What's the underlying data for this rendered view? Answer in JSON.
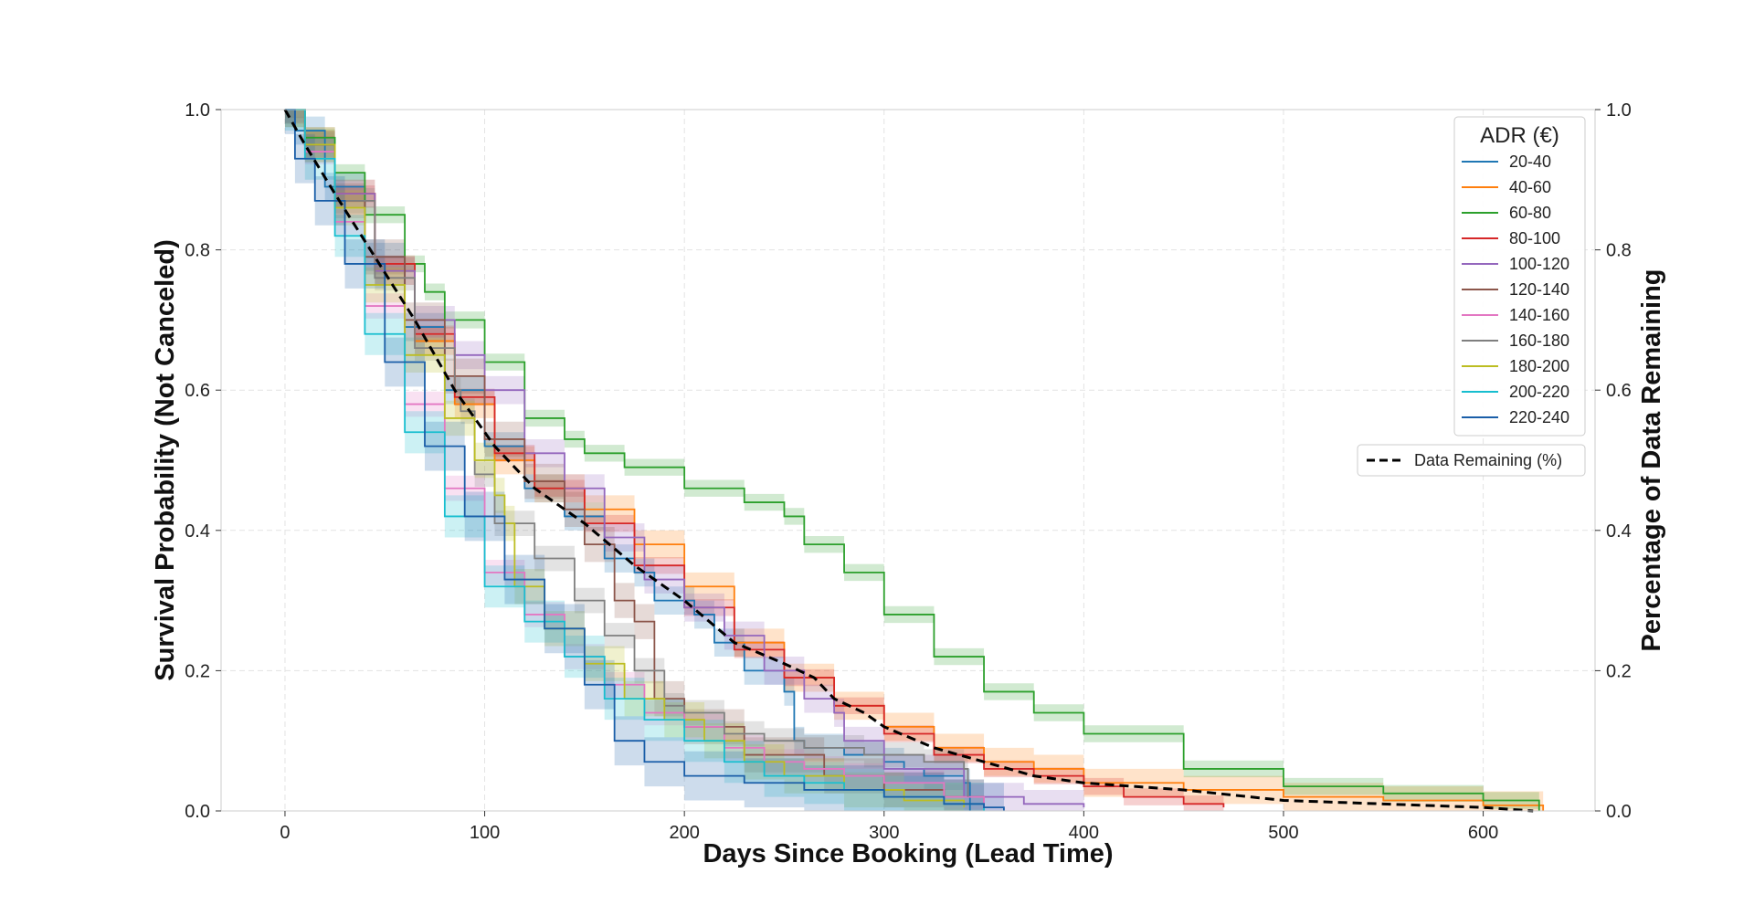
{
  "chart_data": {
    "type": "line",
    "subtype": "kaplan-meier survival curves with confidence bands",
    "xlabel": "Days Since Booking (Lead Time)",
    "ylabel": "Survival Probability (Not Canceled)",
    "y2label": "Percentage of Data Remaining",
    "xlim": [
      -32,
      656
    ],
    "ylim": [
      0,
      1
    ],
    "y2lim": [
      0,
      1
    ],
    "x_ticks": [
      0,
      100,
      200,
      300,
      400,
      500,
      600
    ],
    "y_ticks": [
      0.0,
      0.2,
      0.4,
      0.6,
      0.8,
      1.0
    ],
    "y_tick_labels": [
      "0.0",
      "0.2",
      "0.4",
      "0.6",
      "0.8",
      "1.0"
    ],
    "y2_ticks": [
      0.0,
      0.2,
      0.4,
      0.6,
      0.8,
      1.0
    ],
    "y2_tick_labels": [
      "0.0",
      "0.2",
      "0.4",
      "0.6",
      "0.8",
      "1.0"
    ],
    "grid": true,
    "legend": {
      "title": "ADR (€)",
      "placement": "top-right"
    },
    "legend2": {
      "placement": "right"
    },
    "series": [
      {
        "name": "20-40",
        "color": "#1f77b4",
        "ci": 0.02,
        "x": [
          0,
          5,
          20,
          40,
          60,
          80,
          100,
          120,
          140,
          160,
          175,
          185,
          205,
          215,
          230,
          250,
          255,
          260,
          280,
          300,
          310,
          320,
          340,
          343
        ],
        "y": [
          1.0,
          0.97,
          0.89,
          0.79,
          0.69,
          0.6,
          0.52,
          0.46,
          0.42,
          0.36,
          0.34,
          0.3,
          0.28,
          0.24,
          0.2,
          0.17,
          0.1,
          0.09,
          0.08,
          0.07,
          0.06,
          0.05,
          0.04,
          0.0
        ]
      },
      {
        "name": "40-60",
        "color": "#ff7f0e",
        "ci": 0.02,
        "x": [
          0,
          10,
          25,
          45,
          65,
          85,
          105,
          125,
          150,
          175,
          200,
          225,
          250,
          275,
          300,
          325,
          350,
          375,
          400,
          450,
          500,
          550,
          600,
          630
        ],
        "y": [
          1.0,
          0.95,
          0.88,
          0.77,
          0.67,
          0.58,
          0.5,
          0.46,
          0.43,
          0.38,
          0.32,
          0.24,
          0.19,
          0.15,
          0.12,
          0.09,
          0.07,
          0.06,
          0.04,
          0.03,
          0.02,
          0.015,
          0.008,
          0.0
        ]
      },
      {
        "name": "60-80",
        "color": "#2ca02c",
        "ci": 0.012,
        "x": [
          0,
          10,
          25,
          40,
          60,
          70,
          80,
          100,
          120,
          140,
          150,
          170,
          200,
          230,
          250,
          260,
          280,
          300,
          325,
          350,
          375,
          400,
          450,
          500,
          550,
          600,
          628
        ],
        "y": [
          1.0,
          0.96,
          0.91,
          0.85,
          0.78,
          0.74,
          0.7,
          0.64,
          0.56,
          0.53,
          0.51,
          0.49,
          0.46,
          0.44,
          0.42,
          0.38,
          0.34,
          0.28,
          0.22,
          0.17,
          0.14,
          0.11,
          0.06,
          0.035,
          0.025,
          0.015,
          0.0
        ]
      },
      {
        "name": "80-100",
        "color": "#d62728",
        "ci": 0.012,
        "x": [
          0,
          10,
          25,
          45,
          65,
          85,
          105,
          125,
          150,
          175,
          200,
          225,
          250,
          275,
          300,
          325,
          350,
          375,
          400,
          420,
          450,
          470
        ],
        "y": [
          1.0,
          0.95,
          0.88,
          0.78,
          0.68,
          0.59,
          0.51,
          0.46,
          0.41,
          0.35,
          0.29,
          0.23,
          0.19,
          0.15,
          0.11,
          0.08,
          0.06,
          0.05,
          0.035,
          0.02,
          0.01,
          0.005
        ]
      },
      {
        "name": "100-120",
        "color": "#9467bd",
        "ci": 0.02,
        "x": [
          0,
          10,
          25,
          45,
          65,
          85,
          100,
          120,
          140,
          160,
          180,
          200,
          220,
          240,
          260,
          275,
          280,
          300,
          340,
          370,
          400
        ],
        "y": [
          1.0,
          0.95,
          0.88,
          0.77,
          0.7,
          0.65,
          0.6,
          0.51,
          0.46,
          0.39,
          0.33,
          0.29,
          0.25,
          0.2,
          0.16,
          0.14,
          0.1,
          0.06,
          0.02,
          0.01,
          0.005
        ]
      },
      {
        "name": "120-140",
        "color": "#8c564b",
        "ci": 0.025,
        "x": [
          0,
          10,
          25,
          40,
          60,
          80,
          100,
          120,
          140,
          150,
          165,
          175,
          185,
          200,
          230,
          270,
          300,
          330,
          350
        ],
        "y": [
          1.0,
          0.95,
          0.87,
          0.79,
          0.7,
          0.62,
          0.53,
          0.47,
          0.43,
          0.38,
          0.3,
          0.27,
          0.16,
          0.12,
          0.08,
          0.05,
          0.03,
          0.02,
          0.005
        ]
      },
      {
        "name": "140-160",
        "color": "#e377c2",
        "ci": 0.018,
        "x": [
          0,
          10,
          25,
          40,
          60,
          80,
          100,
          120,
          140,
          160,
          180,
          200,
          220,
          240,
          260,
          280,
          300,
          330,
          350
        ],
        "y": [
          1.0,
          0.94,
          0.84,
          0.72,
          0.58,
          0.46,
          0.34,
          0.28,
          0.22,
          0.18,
          0.14,
          0.12,
          0.09,
          0.07,
          0.06,
          0.05,
          0.04,
          0.02,
          0.005
        ]
      },
      {
        "name": "160-180",
        "color": "#7f7f7f",
        "ci": 0.018,
        "x": [
          0,
          10,
          25,
          45,
          65,
          85,
          88,
          95,
          105,
          125,
          145,
          160,
          175,
          190,
          200,
          220,
          240,
          260,
          290,
          320,
          340,
          342
        ],
        "y": [
          1.0,
          0.95,
          0.87,
          0.76,
          0.66,
          0.6,
          0.57,
          0.48,
          0.41,
          0.36,
          0.3,
          0.25,
          0.2,
          0.15,
          0.14,
          0.11,
          0.1,
          0.09,
          0.08,
          0.07,
          0.06,
          0.02
        ]
      },
      {
        "name": "180-200",
        "color": "#bcbd22",
        "ci": 0.025,
        "x": [
          0,
          10,
          25,
          40,
          60,
          80,
          95,
          105,
          110,
          115,
          130,
          150,
          170,
          190,
          210,
          230,
          250,
          280,
          310,
          340
        ],
        "y": [
          1.0,
          0.95,
          0.86,
          0.75,
          0.65,
          0.56,
          0.5,
          0.45,
          0.41,
          0.32,
          0.26,
          0.21,
          0.16,
          0.13,
          0.1,
          0.07,
          0.05,
          0.03,
          0.015,
          0.005
        ]
      },
      {
        "name": "200-220",
        "color": "#17becf",
        "ci": 0.03,
        "x": [
          0,
          10,
          25,
          40,
          60,
          80,
          100,
          120,
          140,
          160,
          180,
          200,
          220,
          240,
          260,
          280,
          300,
          330,
          350
        ],
        "y": [
          1.0,
          0.93,
          0.82,
          0.68,
          0.54,
          0.42,
          0.32,
          0.27,
          0.22,
          0.16,
          0.13,
          0.1,
          0.07,
          0.05,
          0.04,
          0.03,
          0.02,
          0.01,
          0.0
        ]
      },
      {
        "name": "220-240",
        "color": "#1a5ea8",
        "ci": 0.035,
        "x": [
          0,
          5,
          15,
          30,
          50,
          70,
          90,
          110,
          130,
          150,
          165,
          180,
          200,
          230,
          260,
          300,
          330,
          350,
          360
        ],
        "y": [
          1.0,
          0.93,
          0.87,
          0.78,
          0.64,
          0.52,
          0.42,
          0.33,
          0.26,
          0.18,
          0.1,
          0.07,
          0.05,
          0.04,
          0.03,
          0.02,
          0.01,
          0.005,
          0.0
        ]
      }
    ],
    "reference_series": {
      "name": "Data Remaining (%)",
      "color": "#000000",
      "style": "dashed",
      "x": [
        0,
        10,
        25,
        45,
        65,
        85,
        105,
        125,
        150,
        175,
        200,
        225,
        250,
        265,
        275,
        290,
        300,
        325,
        350,
        375,
        400,
        450,
        500,
        550,
        600,
        625
      ],
      "y": [
        1.0,
        0.95,
        0.88,
        0.79,
        0.7,
        0.6,
        0.52,
        0.46,
        0.41,
        0.35,
        0.3,
        0.24,
        0.21,
        0.19,
        0.16,
        0.14,
        0.12,
        0.09,
        0.07,
        0.05,
        0.04,
        0.03,
        0.015,
        0.01,
        0.005,
        0.0
      ]
    }
  }
}
